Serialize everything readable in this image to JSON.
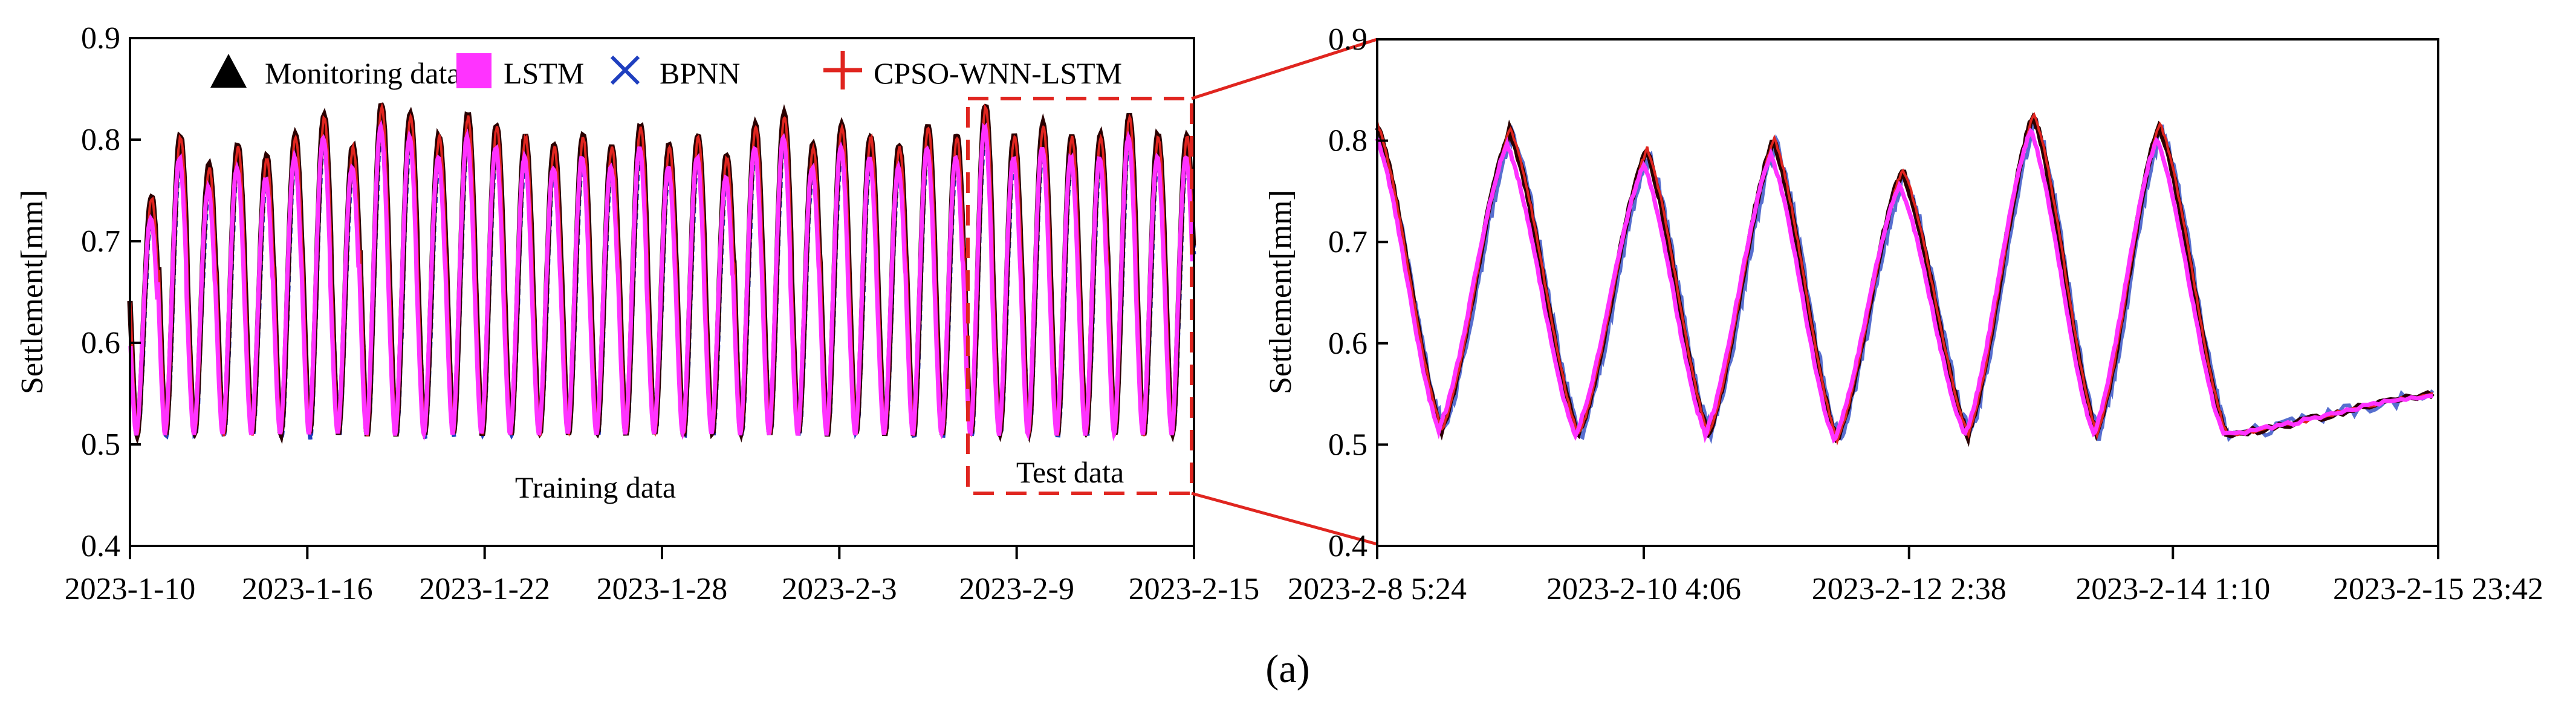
{
  "figure": {
    "caption": "(a)",
    "colors": {
      "monitoring": "#2a0000",
      "monitoring_marker": "#000000",
      "lstm": "#ff33ff",
      "bpnn": "#1f3fbf",
      "cpso": "#e0251f",
      "zoom": "#e0251f",
      "axis": "#000000"
    }
  },
  "legend": {
    "monitoring": "Monitoring data",
    "lstm": "LSTM",
    "bpnn": "BPNN",
    "cpso": "CPSO-WNN-LSTM"
  },
  "chart_data": [
    {
      "type": "line",
      "panel": "full-series",
      "title": "",
      "xlabel": "",
      "ylabel": "Settlement[mm]",
      "ylim": [
        0.4,
        0.9
      ],
      "yticks": [
        "0.4",
        "0.5",
        "0.6",
        "0.7",
        "0.8",
        "0.9"
      ],
      "xlim_days": [
        0,
        36
      ],
      "xtick_labels": [
        "2023-1-10",
        "2023-1-16",
        "2023-1-22",
        "2023-1-28",
        "2023-2-3",
        "2023-2-9",
        "2023-2-15"
      ],
      "xtick_days": [
        0,
        6,
        12,
        18,
        24,
        30,
        36
      ],
      "cycle_period_days": 1,
      "cycle_min": 0.51,
      "cycle_peaks": [
        0.74,
        0.8,
        0.77,
        0.79,
        0.78,
        0.8,
        0.82,
        0.79,
        0.83,
        0.82,
        0.8,
        0.82,
        0.81,
        0.8,
        0.79,
        0.8,
        0.79,
        0.81,
        0.79,
        0.8,
        0.78,
        0.81,
        0.82,
        0.79,
        0.81,
        0.8,
        0.79,
        0.81,
        0.8,
        0.83,
        0.8,
        0.81,
        0.8,
        0.8,
        0.82,
        0.8,
        0.8
      ],
      "training_label": "Training data",
      "test_label": "Test data",
      "test_region_days": [
        28.6,
        36
      ]
    },
    {
      "type": "line",
      "panel": "test-zoom",
      "title": "",
      "xlabel": "",
      "ylabel": "Settlement[mm]",
      "ylim": [
        0.4,
        0.9
      ],
      "yticks": [
        "0.4",
        "0.5",
        "0.6",
        "0.7",
        "0.8",
        "0.9"
      ],
      "xlim_days": [
        0,
        7.76
      ],
      "xtick_labels": [
        "2023-2-8 5:24",
        "2023-2-10 4:06",
        "2023-2-12 2:38",
        "2023-2-14 1:10",
        "2023-2-15 23:42"
      ],
      "xtick_days": [
        0,
        1.95,
        3.89,
        5.82,
        7.76
      ],
      "troughs": [
        [
          0.47,
          0.515
        ],
        [
          1.47,
          0.51
        ],
        [
          2.42,
          0.51
        ],
        [
          3.36,
          0.505
        ],
        [
          4.32,
          0.51
        ],
        [
          5.26,
          0.51
        ],
        [
          6.21,
          0.51
        ]
      ],
      "peaks": [
        [
          0.0,
          0.815
        ],
        [
          0.97,
          0.81
        ],
        [
          1.97,
          0.79
        ],
        [
          2.9,
          0.8
        ],
        [
          3.84,
          0.77
        ],
        [
          4.8,
          0.825
        ],
        [
          5.72,
          0.815
        ]
      ],
      "end_value": 0.55,
      "series": [
        {
          "name": "Monitoring data",
          "peak_offset": 0.0,
          "noise": 0.004
        },
        {
          "name": "LSTM",
          "peak_offset": -0.012,
          "noise": 0.003
        },
        {
          "name": "BPNN",
          "peak_offset": 0.0,
          "noise": 0.008
        },
        {
          "name": "CPSO-WNN-LSTM",
          "peak_offset": 0.002,
          "noise": 0.004
        }
      ]
    }
  ]
}
